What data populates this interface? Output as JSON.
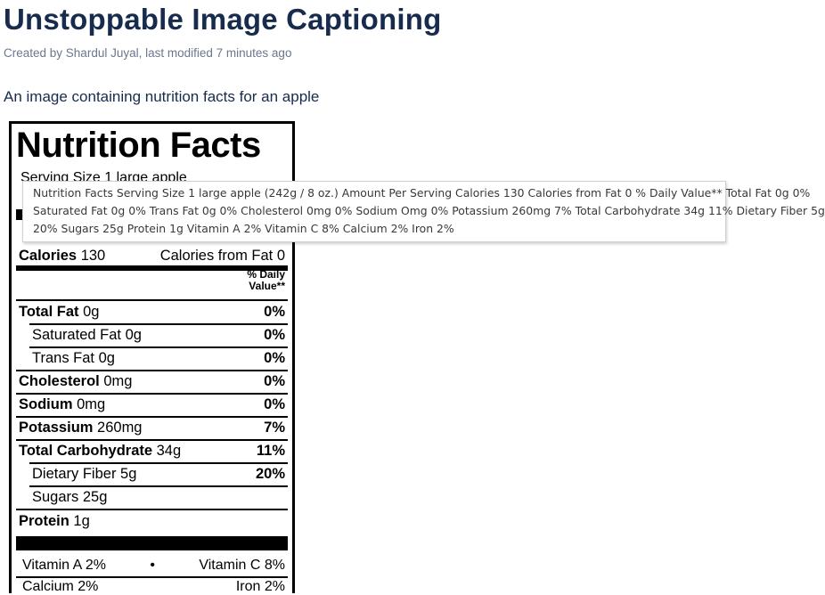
{
  "page": {
    "title": "Unstoppable Image Captioning",
    "byline_prefix": "Created by ",
    "author": "Shardul Juyal",
    "modified": ", last modified 7 minutes ago",
    "caption": "An image containing nutrition facts for an apple"
  },
  "label": {
    "title": "Nutrition Facts",
    "serving": "Serving Size 1 large apple",
    "calories_label": "Calories",
    "calories_value": " 130",
    "calories_from_fat": "Calories from Fat 0",
    "dv_header_line1": "% Daily",
    "dv_header_line2": "Value**",
    "rows": [
      {
        "name": "Total Fat",
        "amount": " 0g",
        "pct": "0%"
      },
      {
        "name": "Saturated Fat",
        "amount": " 0g",
        "pct": "0%"
      },
      {
        "name": "Trans Fat",
        "amount": " 0g",
        "pct": "0%"
      },
      {
        "name": "Cholesterol",
        "amount": " 0mg",
        "pct": "0%"
      },
      {
        "name": "Sodium",
        "amount": " 0mg",
        "pct": "0%"
      },
      {
        "name": "Potassium",
        "amount": " 260mg",
        "pct": "7%"
      },
      {
        "name": "Total Carbohydrate",
        "amount": " 34g",
        "pct": "11%"
      },
      {
        "name": "Dietary Fiber",
        "amount": " 5g",
        "pct": "20%"
      },
      {
        "name": "Sugars",
        "amount": " 25g",
        "pct": ""
      },
      {
        "name": "Protein",
        "amount": " 1g",
        "pct": ""
      }
    ],
    "vitamin_a": "Vitamin A  2%",
    "bullet": "•",
    "vitamin_c": "Vitamin C  8%",
    "calcium": "Calcium  2%",
    "iron": "Iron  2%"
  },
  "tooltip": {
    "line1": "Nutrition Facts Serving Size 1 large apple (242g / 8 oz.) Amount Per Serving Calories 130 Calories from Fat 0 % Daily Value** Total Fat 0g 0%",
    "line2": "Saturated Fat 0g 0% Trans Fat 0g 0% Cholesterol 0mg 0% Sodium Omg 0% Potassium 260mg 7% Total Carbohydrate 34g 11% Dietary Fiber 5g",
    "line3": "20% Sugars 25g Protein 1g Vitamin A 2% Vitamin C 8% Calcium 2% Iron 2%"
  }
}
